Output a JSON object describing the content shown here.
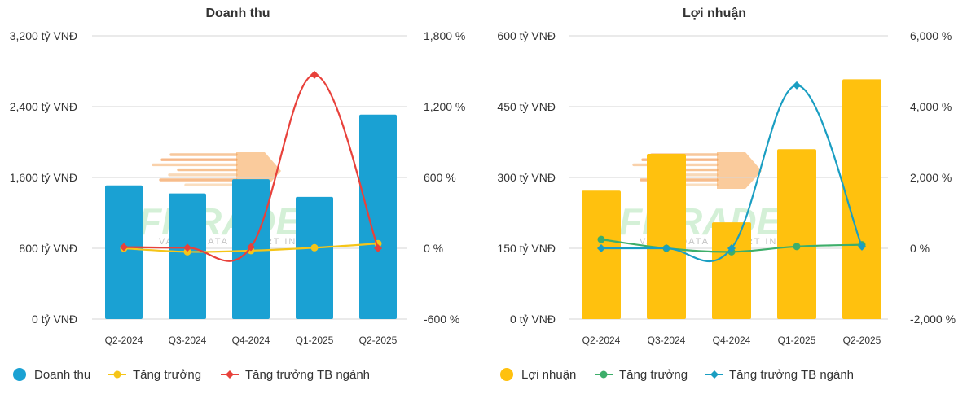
{
  "charts": [
    {
      "title": "Doanh thu",
      "left_ticks": [
        "3,200 tỷ VNĐ",
        "2,400 tỷ VNĐ",
        "1,600 tỷ VNĐ",
        "800 tỷ VNĐ",
        "0 tỷ VNĐ"
      ],
      "right_ticks": [
        "1,800 %",
        "1,200 %",
        "600 %",
        "0 %",
        "-600 %"
      ],
      "legend": [
        "Doanh thu",
        "Tăng trưởng",
        "Tăng trưởng TB ngành"
      ]
    },
    {
      "title": "Lợi nhuận",
      "left_ticks": [
        "600 tỷ VNĐ",
        "450 tỷ VNĐ",
        "300 tỷ VNĐ",
        "150 tỷ VNĐ",
        "0 tỷ VNĐ"
      ],
      "right_ticks": [
        "6,000 %",
        "4,000 %",
        "2,000 %",
        "0 %",
        "-2,000 %"
      ],
      "legend": [
        "Lợi nhuận",
        "Tăng trưởng",
        "Tăng trưởng TB ngành"
      ]
    }
  ],
  "watermark": {
    "brand": "FITRADE",
    "tagline": "VALUE DATA · SMART INVEST"
  },
  "chart_data": [
    {
      "type": "bar",
      "title": "Doanh thu",
      "categories": [
        "Q2-2024",
        "Q3-2024",
        "Q4-2024",
        "Q1-2025",
        "Q2-2025"
      ],
      "left_axis": {
        "ylim": [
          0,
          3200
        ],
        "ticks": [
          0,
          800,
          1600,
          2400,
          3200
        ],
        "unit": "tỷ VNĐ"
      },
      "right_axis": {
        "ylim": [
          -600,
          1800
        ],
        "ticks": [
          -600,
          0,
          600,
          1200,
          1800
        ],
        "unit": "%"
      },
      "series": [
        {
          "name": "Doanh thu",
          "kind": "bar",
          "axis": "left",
          "color": "#1aa1d3",
          "values": [
            1510,
            1420,
            1580,
            1380,
            2310
          ]
        },
        {
          "name": "Tăng trưởng",
          "kind": "line",
          "axis": "right",
          "color": "#f5c518",
          "marker": "circle",
          "values": [
            0,
            -30,
            -20,
            5,
            40
          ]
        },
        {
          "name": "Tăng trưởng TB ngành",
          "kind": "line",
          "axis": "right",
          "color": "#e8413b",
          "marker": "diamond",
          "values": [
            10,
            5,
            10,
            1470,
            0
          ]
        }
      ],
      "grid": true,
      "legend_position": "bottom-left"
    },
    {
      "type": "bar",
      "title": "Lợi nhuận",
      "categories": [
        "Q2-2024",
        "Q3-2024",
        "Q4-2024",
        "Q1-2025",
        "Q2-2025"
      ],
      "left_axis": {
        "ylim": [
          0,
          600
        ],
        "ticks": [
          0,
          150,
          300,
          450,
          600
        ],
        "unit": "tỷ VNĐ"
      },
      "right_axis": {
        "ylim": [
          -2000,
          6000
        ],
        "ticks": [
          -2000,
          0,
          2000,
          4000,
          6000
        ],
        "unit": "%"
      },
      "series": [
        {
          "name": "Lợi nhuận",
          "kind": "bar",
          "axis": "left",
          "color": "#ffc10e",
          "values": [
            272,
            350,
            205,
            360,
            508
          ]
        },
        {
          "name": "Tăng trưởng",
          "kind": "line",
          "axis": "right",
          "color": "#3dae6a",
          "marker": "circle",
          "values": [
            250,
            0,
            -100,
            50,
            100
          ]
        },
        {
          "name": "Tăng trưởng TB ngành",
          "kind": "line",
          "axis": "right",
          "color": "#1a9ec2",
          "marker": "diamond",
          "values": [
            0,
            0,
            0,
            4600,
            50
          ]
        }
      ],
      "grid": true,
      "legend_position": "bottom-left"
    }
  ]
}
